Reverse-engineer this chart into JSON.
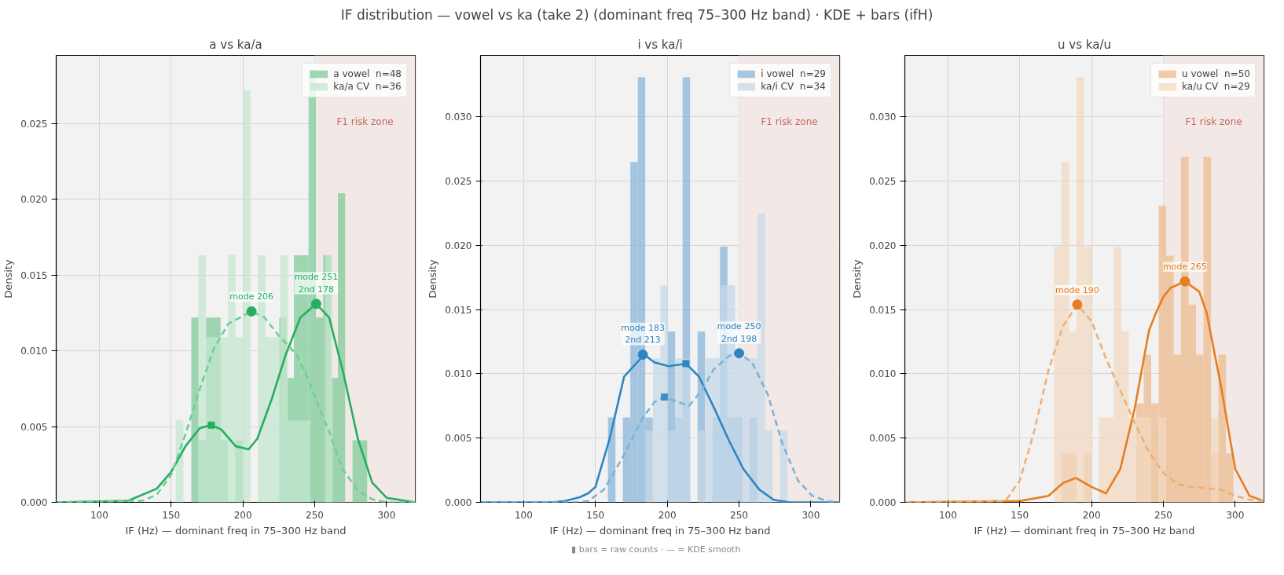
{
  "chart_data": [
    {
      "type": "other",
      "title": "IF distribution — vowel vs ka (take 2) (dominant freq 75–300 Hz band) · KDE + bars (ifH)"
    },
    {
      "type": "histogram",
      "subtitle": "a vs ka/a",
      "xlabel": "IF (Hz) — dominant freq in 75–300 Hz band",
      "ylabel": "Density",
      "xlim": [
        70,
        320
      ],
      "xticks": [
        100,
        150,
        200,
        250,
        300
      ],
      "ylim": [
        0,
        0.0295
      ],
      "yticks": [
        {
          "value": 0,
          "label": "0.000"
        },
        {
          "value": 0.005,
          "label": "0.005"
        },
        {
          "value": 0.01,
          "label": "0.010"
        },
        {
          "value": 0.015,
          "label": "0.015"
        },
        {
          "value": 0.02,
          "label": "0.020"
        },
        {
          "value": 0.025,
          "label": "0.025"
        }
      ],
      "grid": true,
      "legend": "top right",
      "bands": [
        {
          "axis": "x",
          "from": 250,
          "to": 320,
          "label": "F1 risk zone",
          "color": "#f2e9e7"
        }
      ],
      "series": [
        {
          "name": "a vowel  n=48",
          "color": "#7fcb98",
          "bins": [
            164.1,
            169.2,
            174.3,
            179.4,
            184.5,
            189.6,
            194.7,
            199.8,
            204.9,
            210.0,
            215.1,
            220.2,
            225.3,
            230.4,
            235.5,
            240.6,
            245.7,
            250.8,
            255.9,
            261.0,
            266.1,
            271.2,
            276.3,
            281.4,
            286.5
          ],
          "values": [
            0.0122,
            0.0041,
            0.0122,
            0.0122,
            0.0041,
            0,
            0.0041,
            0,
            0,
            0,
            0,
            0,
            0.0122,
            0.0082,
            0.0163,
            0.0163,
            0.0286,
            0.0122,
            0.0163,
            0.0082,
            0.0204,
            0,
            0.0041,
            0.0041
          ]
        },
        {
          "name": "ka/a CV  n=36",
          "color": "#c4e6cf",
          "bins": [
            153.3,
            158.5,
            163.7,
            168.9,
            174.1,
            179.3,
            184.5,
            189.7,
            194.9,
            200.1,
            205.3,
            210.5,
            215.7,
            220.9,
            226.1,
            231.3,
            236.5,
            241.7,
            246.9,
            252.1,
            257.3,
            262.5
          ],
          "values": [
            0.0054,
            0,
            0,
            0.0163,
            0.0109,
            0.0109,
            0.0109,
            0.0163,
            0.0109,
            0.0272,
            0,
            0.0163,
            0.0109,
            0.0109,
            0.0163,
            0.0054,
            0.0054,
            0.0054,
            0,
            0,
            0.0163
          ]
        },
        {
          "type": "line",
          "color": "#27ae60",
          "line_style": "solid",
          "x": [
            70,
            120,
            140,
            150,
            160,
            170,
            178,
            185,
            195,
            204,
            210,
            220,
            230,
            240,
            251,
            260,
            270,
            280,
            290,
            300,
            320
          ],
          "values": [
            0,
            0.0001,
            0.0009,
            0.002,
            0.0037,
            0.0049,
            0.0051,
            0.0048,
            0.0037,
            0.0035,
            0.0042,
            0.0068,
            0.0098,
            0.0122,
            0.0131,
            0.0122,
            0.0085,
            0.0042,
            0.0013,
            0.0003,
            0
          ]
        },
        {
          "type": "line",
          "color": "#6fcf97",
          "line_style": "dashed",
          "x": [
            70,
            130,
            140,
            150,
            160,
            170,
            180,
            190,
            206,
            215,
            225,
            237,
            245,
            255,
            260,
            265,
            270,
            280,
            290,
            300,
            320
          ],
          "values": [
            0,
            0.0001,
            0.0005,
            0.0018,
            0.0045,
            0.0075,
            0.0102,
            0.0118,
            0.0126,
            0.0122,
            0.011,
            0.0098,
            0.0082,
            0.0058,
            0.0047,
            0.0033,
            0.0021,
            0.0008,
            0.0002,
            0,
            0
          ]
        },
        {
          "type": "scatter",
          "marker": "circle",
          "color": "#27ae60",
          "x": [
            206,
            251
          ],
          "values": [
            0.0126,
            0.0131
          ]
        },
        {
          "type": "scatter",
          "marker": "square",
          "color": "#27ae60",
          "x": [
            178
          ],
          "values": [
            0.0051
          ]
        }
      ],
      "annotations": [
        {
          "text": "mode 206",
          "x": 206,
          "y": 0.0126
        },
        {
          "text": "mode 251\n2nd 178",
          "x": 251,
          "y": 0.0131
        }
      ]
    },
    {
      "type": "histogram",
      "subtitle": "i vs ka/i",
      "xlabel": "IF (Hz) — dominant freq in 75–300 Hz band",
      "ylabel": "Density",
      "xlim": [
        70,
        320
      ],
      "xticks": [
        100,
        150,
        200,
        250,
        300
      ],
      "ylim": [
        0,
        0.0348
      ],
      "yticks": [
        {
          "value": 0,
          "label": "0.000"
        },
        {
          "value": 0.005,
          "label": "0.005"
        },
        {
          "value": 0.01,
          "label": "0.010"
        },
        {
          "value": 0.015,
          "label": "0.015"
        },
        {
          "value": 0.02,
          "label": "0.020"
        },
        {
          "value": 0.025,
          "label": "0.025"
        },
        {
          "value": 0.03,
          "label": "0.030"
        }
      ],
      "grid": true,
      "legend": "top right",
      "bands": [
        {
          "axis": "x",
          "from": 250,
          "to": 320,
          "label": "F1 risk zone",
          "color": "#f2e9e7"
        }
      ],
      "series": [
        {
          "name": "i vowel  n=29",
          "color": "#8ab6d8",
          "bins": [
            158.7,
            163.9,
            169.1,
            174.3,
            179.5,
            184.7,
            189.9,
            195.1,
            200.3,
            205.5,
            210.7,
            215.9,
            221.1,
            226.3,
            231.5,
            236.7,
            241.9,
            247.1,
            252.3,
            257.5,
            262.7
          ],
          "values": [
            0.0066,
            0,
            0.0066,
            0.0265,
            0.0331,
            0.0066,
            0,
            0,
            0.0133,
            0.0066,
            0.0331,
            0,
            0.0133,
            0,
            0.0066,
            0.0199,
            0.0066,
            0.0066,
            0,
            0.0066
          ]
        },
        {
          "name": "ka/i CV  n=34",
          "color": "#c6d8e8",
          "bins": [
            184.9,
            190.1,
            195.3,
            200.5,
            205.7,
            210.9,
            216.1,
            221.3,
            226.5,
            231.7,
            236.9,
            242.1,
            247.3,
            252.5,
            257.7,
            262.9,
            268.1,
            273.3,
            278.5,
            283.7
          ],
          "values": [
            0.0056,
            0.0112,
            0.0169,
            0.0056,
            0.0112,
            0.0112,
            0,
            0.0056,
            0.0112,
            0.0112,
            0.0169,
            0.0169,
            0.0112,
            0.0112,
            0.0112,
            0.0225,
            0.0056,
            0,
            0.0056
          ]
        },
        {
          "type": "line",
          "color": "#2e86c1",
          "line_style": "solid",
          "x": [
            70,
            120,
            129,
            139,
            145,
            150,
            160,
            170,
            184,
            191,
            201,
            213,
            222,
            232,
            243,
            253,
            264,
            274,
            285,
            320
          ],
          "values": [
            0,
            0,
            0.0001,
            0.0004,
            0.0007,
            0.0012,
            0.005,
            0.0098,
            0.0115,
            0.0109,
            0.0106,
            0.0108,
            0.0098,
            0.0075,
            0.0048,
            0.0026,
            0.001,
            0.0002,
            0,
            0
          ]
        },
        {
          "type": "line",
          "color": "#7fb2d6",
          "line_style": "dashed",
          "x": [
            70,
            135,
            145,
            156,
            170,
            183,
            191,
            198,
            208,
            215,
            224,
            232,
            243,
            250,
            259,
            270,
            280,
            291,
            301,
            311,
            320
          ],
          "values": [
            0,
            0,
            0.0001,
            0.001,
            0.0037,
            0.0066,
            0.0078,
            0.0082,
            0.0078,
            0.0075,
            0.0087,
            0.0103,
            0.0114,
            0.0116,
            0.0109,
            0.0084,
            0.0046,
            0.0017,
            0.0005,
            0.0001,
            0
          ]
        },
        {
          "type": "scatter",
          "marker": "circle",
          "color": "#2e86c1",
          "x": [
            183,
            250
          ],
          "values": [
            0.0115,
            0.0116
          ]
        },
        {
          "type": "scatter",
          "marker": "square",
          "color": "#2e86c1",
          "x": [
            213
          ],
          "values": [
            0.0108
          ]
        },
        {
          "type": "scatter",
          "marker": "square",
          "color": "#3f8fc6",
          "x": [
            198
          ],
          "values": [
            0.0082
          ]
        }
      ],
      "annotations": [
        {
          "text": "mode 183\n2nd 213",
          "x": 183,
          "y": 0.0115
        },
        {
          "text": "mode 250\n2nd 198",
          "x": 250,
          "y": 0.0116
        },
        "▮  bars = raw counts  ·  — = KDE smooth"
      ]
    },
    {
      "type": "histogram",
      "subtitle": "u vs ka/u",
      "xlabel": "IF (Hz) — dominant freq in 75–300 Hz band",
      "ylabel": "Density",
      "xlim": [
        70,
        320
      ],
      "xticks": [
        100,
        150,
        200,
        250,
        300
      ],
      "ylim": [
        0,
        0.0348
      ],
      "yticks": [
        {
          "value": 0,
          "label": "0.000"
        },
        {
          "value": 0.005,
          "label": "0.005"
        },
        {
          "value": 0.01,
          "label": "0.010"
        },
        {
          "value": 0.015,
          "label": "0.015"
        },
        {
          "value": 0.02,
          "label": "0.020"
        },
        {
          "value": 0.025,
          "label": "0.025"
        },
        {
          "value": 0.03,
          "label": "0.030"
        }
      ],
      "grid": true,
      "legend": "top right",
      "bands": [
        {
          "axis": "x",
          "from": 250,
          "to": 320,
          "label": "F1 risk zone",
          "color": "#f2e9e7"
        }
      ],
      "series": [
        {
          "name": "u vowel  n=50",
          "color": "#ecbb8e",
          "bins": [
            179.1,
            184.3,
            189.5,
            194.7,
            199.9,
            205.1,
            210.3,
            215.5,
            220.7,
            225.9,
            231.1,
            236.3,
            241.5,
            246.7,
            251.9,
            257.1,
            262.3,
            267.5,
            272.7,
            277.9,
            283.1,
            288.3,
            293.5,
            298.7
          ],
          "values": [
            0.0038,
            0.0038,
            0,
            0.0038,
            0,
            0,
            0,
            0,
            0,
            0,
            0.0077,
            0.0115,
            0.0077,
            0.0231,
            0.0192,
            0.0115,
            0.0269,
            0.0154,
            0.0115,
            0.0269,
            0.0038,
            0.0115,
            0.0038
          ]
        },
        {
          "name": "ka/u CV  n=29",
          "color": "#f2d8c0",
          "bins": [
            173.9,
            179.1,
            184.3,
            189.5,
            194.7,
            199.9,
            205.1,
            210.3,
            215.5,
            220.7,
            225.9,
            231.1,
            236.3,
            241.5,
            246.7,
            251.9,
            257.1,
            262.3,
            267.5,
            272.7,
            277.9,
            283.1,
            288.3
          ],
          "values": [
            0.0199,
            0.0265,
            0.0133,
            0.0331,
            0.0199,
            0,
            0.0066,
            0.0066,
            0.0199,
            0.0133,
            0.0066,
            0.0066,
            0.0066,
            0,
            0.0066,
            0,
            0,
            0,
            0,
            0,
            0,
            0.0066
          ]
        },
        {
          "type": "line",
          "color": "#e67e22",
          "line_style": "solid",
          "x": [
            70,
            150,
            170,
            180,
            189,
            200,
            210,
            220,
            230,
            240,
            245,
            250,
            255,
            265,
            275,
            280,
            290,
            300,
            310,
            320
          ],
          "values": [
            0,
            0.0001,
            0.0005,
            0.0015,
            0.0019,
            0.0012,
            0.0007,
            0.0026,
            0.0073,
            0.0134,
            0.0148,
            0.016,
            0.0167,
            0.0172,
            0.0164,
            0.0148,
            0.0091,
            0.0026,
            0.0005,
            0.0001
          ]
        },
        {
          "type": "line",
          "color": "#efaf73",
          "line_style": "dashed",
          "x": [
            70,
            140,
            150,
            160,
            170,
            180,
            190,
            200,
            210,
            220,
            230,
            240,
            250,
            260,
            270,
            280,
            290,
            300,
            310,
            320
          ],
          "values": [
            0,
            0.0001,
            0.0017,
            0.0055,
            0.0103,
            0.0137,
            0.0154,
            0.0141,
            0.0112,
            0.0087,
            0.0062,
            0.0039,
            0.0023,
            0.0014,
            0.0012,
            0.0011,
            0.001,
            0.0005,
            0.0002,
            0.0001
          ]
        },
        {
          "type": "scatter",
          "marker": "circle",
          "color": "#e67e22",
          "x": [
            190,
            265
          ],
          "values": [
            0.0154,
            0.0172
          ]
        }
      ],
      "annotations": [
        {
          "text": "mode 190",
          "x": 190,
          "y": 0.0154
        },
        {
          "text": "mode 265",
          "x": 265,
          "y": 0.0172
        }
      ]
    }
  ]
}
